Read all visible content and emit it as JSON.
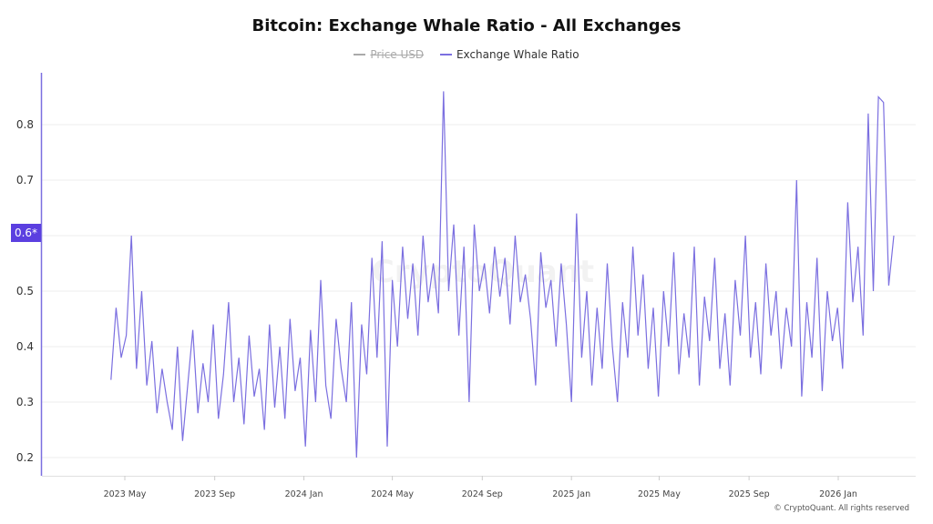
{
  "chart_data": {
    "type": "line",
    "title": "Bitcoin: Exchange Whale Ratio - All Exchanges",
    "legend": [
      {
        "name": "Price USD",
        "color": "#aaaaaa",
        "hidden": true
      },
      {
        "name": "Exchange Whale Ratio",
        "color": "#7b6fe0",
        "hidden": false
      }
    ],
    "legend_placement": "top-center",
    "yticks": [
      "0.2",
      "0.3",
      "0.4",
      "0.5",
      "0.6",
      "0.7",
      "0.8"
    ],
    "ylim": [
      0.17,
      0.9
    ],
    "current_value_label": "0.6*",
    "xticks": [
      {
        "label": "2023 May",
        "date": "2023-05-01"
      },
      {
        "label": "2023 Sep",
        "date": "2023-09-01"
      },
      {
        "label": "2024 Jan",
        "date": "2024-01-01"
      },
      {
        "label": "2024 May",
        "date": "2024-05-01"
      },
      {
        "label": "2024 Sep",
        "date": "2024-09-01"
      },
      {
        "label": "2025 Jan",
        "date": "2025-01-01"
      },
      {
        "label": "2025 May",
        "date": "2025-05-01"
      },
      {
        "label": "2025 Sep",
        "date": "2025-09-01"
      },
      {
        "label": "2026 Jan",
        "date": "2026-01-01"
      }
    ],
    "grid": true,
    "accent_color": "#5b3fe0",
    "series": [
      {
        "name": "Exchange Whale Ratio",
        "color": "#7b6fe0",
        "x": [
          "2023-04-12",
          "2023-04-19",
          "2023-04-26",
          "2023-05-03",
          "2023-05-10",
          "2023-05-17",
          "2023-05-24",
          "2023-05-31",
          "2023-06-07",
          "2023-06-14",
          "2023-06-21",
          "2023-06-28",
          "2023-07-05",
          "2023-07-12",
          "2023-07-19",
          "2023-07-26",
          "2023-08-02",
          "2023-08-09",
          "2023-08-16",
          "2023-08-23",
          "2023-08-30",
          "2023-09-06",
          "2023-09-13",
          "2023-09-20",
          "2023-09-27",
          "2023-10-04",
          "2023-10-11",
          "2023-10-18",
          "2023-10-25",
          "2023-11-01",
          "2023-11-08",
          "2023-11-15",
          "2023-11-22",
          "2023-11-29",
          "2023-12-06",
          "2023-12-13",
          "2023-12-20",
          "2023-12-27",
          "2024-01-03",
          "2024-01-10",
          "2024-01-17",
          "2024-01-24",
          "2024-01-31",
          "2024-02-07",
          "2024-02-14",
          "2024-02-21",
          "2024-02-28",
          "2024-03-06",
          "2024-03-13",
          "2024-03-20",
          "2024-03-27",
          "2024-04-03",
          "2024-04-10",
          "2024-04-17",
          "2024-04-24",
          "2024-05-01",
          "2024-05-08",
          "2024-05-15",
          "2024-05-22",
          "2024-05-29",
          "2024-06-05",
          "2024-06-12",
          "2024-06-19",
          "2024-06-26",
          "2024-07-03",
          "2024-07-10",
          "2024-07-17",
          "2024-07-24",
          "2024-07-31",
          "2024-08-07",
          "2024-08-14",
          "2024-08-21",
          "2024-08-28",
          "2024-09-04",
          "2024-09-11",
          "2024-09-18",
          "2024-09-25",
          "2024-10-02",
          "2024-10-09",
          "2024-10-16",
          "2024-10-23",
          "2024-10-30",
          "2024-11-06",
          "2024-11-13",
          "2024-11-20",
          "2024-11-27",
          "2024-12-04",
          "2024-12-11",
          "2024-12-18",
          "2024-12-25",
          "2025-01-01",
          "2025-01-08",
          "2025-01-15",
          "2025-01-22",
          "2025-01-29",
          "2025-02-05",
          "2025-02-12",
          "2025-02-19",
          "2025-02-26",
          "2025-03-05",
          "2025-03-12",
          "2025-03-19",
          "2025-03-26",
          "2025-04-02",
          "2025-04-09",
          "2025-04-16",
          "2025-04-23",
          "2025-04-30",
          "2025-05-07",
          "2025-05-14",
          "2025-05-21",
          "2025-05-28",
          "2025-06-04",
          "2025-06-11",
          "2025-06-18",
          "2025-06-25",
          "2025-07-02",
          "2025-07-09",
          "2025-07-16",
          "2025-07-23",
          "2025-07-30",
          "2025-08-06",
          "2025-08-13",
          "2025-08-20",
          "2025-08-27",
          "2025-09-03",
          "2025-09-10",
          "2025-09-17",
          "2025-09-24",
          "2025-10-01",
          "2025-10-08",
          "2025-10-15",
          "2025-10-22",
          "2025-10-29",
          "2025-11-05",
          "2025-11-12",
          "2025-11-19",
          "2025-11-26",
          "2025-12-03",
          "2025-12-10",
          "2025-12-17",
          "2025-12-24",
          "2025-12-31",
          "2026-01-07",
          "2026-01-14",
          "2026-01-21",
          "2026-01-28",
          "2026-02-04",
          "2026-02-11",
          "2026-02-18",
          "2026-02-25",
          "2026-03-04",
          "2026-03-11",
          "2026-03-18"
        ],
        "values": [
          0.34,
          0.47,
          0.38,
          0.42,
          0.6,
          0.36,
          0.5,
          0.33,
          0.41,
          0.28,
          0.36,
          0.3,
          0.25,
          0.4,
          0.23,
          0.33,
          0.43,
          0.28,
          0.37,
          0.3,
          0.44,
          0.27,
          0.35,
          0.48,
          0.3,
          0.38,
          0.26,
          0.42,
          0.31,
          0.36,
          0.25,
          0.44,
          0.29,
          0.4,
          0.27,
          0.45,
          0.32,
          0.38,
          0.22,
          0.43,
          0.3,
          0.52,
          0.33,
          0.27,
          0.45,
          0.36,
          0.3,
          0.48,
          0.2,
          0.44,
          0.35,
          0.56,
          0.38,
          0.59,
          0.22,
          0.52,
          0.4,
          0.58,
          0.45,
          0.55,
          0.42,
          0.6,
          0.48,
          0.55,
          0.46,
          0.86,
          0.5,
          0.62,
          0.42,
          0.58,
          0.3,
          0.62,
          0.5,
          0.55,
          0.46,
          0.58,
          0.49,
          0.56,
          0.44,
          0.6,
          0.48,
          0.53,
          0.45,
          0.33,
          0.57,
          0.47,
          0.52,
          0.4,
          0.55,
          0.44,
          0.3,
          0.64,
          0.38,
          0.5,
          0.33,
          0.47,
          0.36,
          0.55,
          0.4,
          0.3,
          0.48,
          0.38,
          0.58,
          0.42,
          0.53,
          0.36,
          0.47,
          0.31,
          0.5,
          0.4,
          0.57,
          0.35,
          0.46,
          0.38,
          0.58,
          0.33,
          0.49,
          0.41,
          0.56,
          0.36,
          0.46,
          0.33,
          0.52,
          0.42,
          0.6,
          0.38,
          0.48,
          0.35,
          0.55,
          0.42,
          0.5,
          0.36,
          0.47,
          0.4,
          0.7,
          0.31,
          0.48,
          0.38,
          0.56,
          0.32,
          0.5,
          0.41,
          0.47,
          0.36,
          0.66,
          0.48,
          0.58,
          0.42,
          0.82,
          0.5,
          0.85,
          0.84,
          0.51,
          0.6
        ]
      }
    ]
  },
  "watermark": "CryptoQuant",
  "footer": "© CryptoQuant. All rights reserved"
}
